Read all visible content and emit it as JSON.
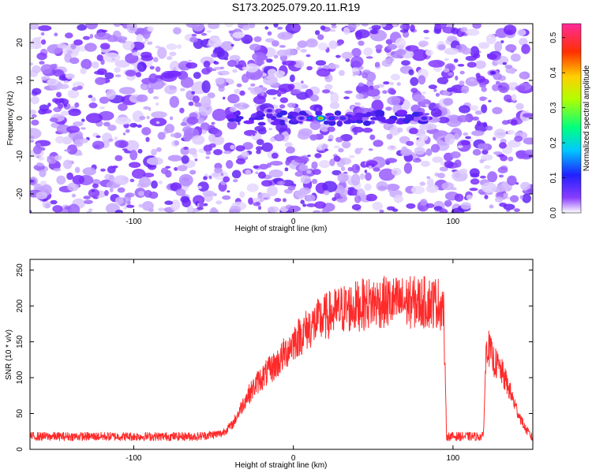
{
  "title": "S173.2025.079.20.11.R19",
  "colors": {
    "snr_line": "#ff2a2a",
    "spectro_base": "#7b2cff",
    "axis": "#000000"
  },
  "chart_data": [
    {
      "type": "heatmap",
      "xlabel": "Height of straight line (km)",
      "ylabel": "Frequency (Hz)",
      "xlim": [
        -165,
        150
      ],
      "ylim": [
        -25,
        25
      ],
      "xticks": [
        {
          "value": -100,
          "label": "-100"
        },
        {
          "value": 0,
          "label": "0"
        },
        {
          "value": 100,
          "label": "100"
        }
      ],
      "yticks": [
        {
          "value": 20,
          "label": "20"
        },
        {
          "value": 10,
          "label": "10"
        },
        {
          "value": 0,
          "label": "0"
        },
        {
          "value": -10,
          "label": "-10"
        },
        {
          "value": -20,
          "label": "-20"
        }
      ],
      "colorbar": {
        "label": "Normalized spectral amplitude",
        "range": [
          0.0,
          0.54
        ],
        "ticks": [
          {
            "value": 0.0,
            "label": "0.0"
          },
          {
            "value": 0.1,
            "label": "0.1"
          },
          {
            "value": 0.2,
            "label": "0.2"
          },
          {
            "value": 0.3,
            "label": "0.3"
          },
          {
            "value": 0.4,
            "label": "0.4"
          },
          {
            "value": 0.5,
            "label": "0.5"
          }
        ]
      },
      "features": [
        {
          "x": 17,
          "y": 0,
          "amplitude": 0.48
        },
        {
          "x": 10,
          "y": 0,
          "amplitude": 0.22
        },
        {
          "x": 24,
          "y": 0,
          "amplitude": 0.2
        },
        {
          "x": 31,
          "y": 0,
          "amplitude": 0.18
        },
        {
          "x": 5,
          "y": 0,
          "amplitude": 0.15
        },
        {
          "x": -15,
          "y": 2,
          "amplitude": 0.14
        },
        {
          "x": 82,
          "y": 0,
          "amplitude": 0.17
        },
        {
          "x": 125,
          "y": 12,
          "amplitude": 0.14
        }
      ]
    },
    {
      "type": "line",
      "xlabel": "Height of straight line (km)",
      "ylabel": "SNR (10 * v/v)",
      "xlim": [
        -165,
        150
      ],
      "ylim": [
        0,
        265
      ],
      "xticks": [
        {
          "value": -100,
          "label": "-100"
        },
        {
          "value": 0,
          "label": "0"
        },
        {
          "value": 100,
          "label": "100"
        }
      ],
      "yticks": [
        {
          "value": 0,
          "label": "0"
        },
        {
          "value": 50,
          "label": "50"
        },
        {
          "value": 100,
          "label": "100"
        },
        {
          "value": 150,
          "label": "150"
        },
        {
          "value": 200,
          "label": "200"
        },
        {
          "value": 250,
          "label": "250"
        }
      ],
      "x": [
        -165,
        -140,
        -100,
        -60,
        -45,
        -38,
        -30,
        -22,
        -15,
        -10,
        -5,
        0,
        10,
        20,
        30,
        40,
        50,
        60,
        70,
        80,
        90,
        94,
        96,
        100,
        110,
        119,
        121,
        125,
        130,
        135,
        140,
        145,
        150
      ],
      "y": [
        18,
        18,
        18,
        18,
        22,
        35,
        70,
        95,
        110,
        120,
        135,
        150,
        170,
        185,
        195,
        200,
        205,
        205,
        205,
        205,
        205,
        200,
        18,
        18,
        18,
        18,
        150,
        125,
        110,
        85,
        55,
        30,
        15
      ]
    }
  ]
}
